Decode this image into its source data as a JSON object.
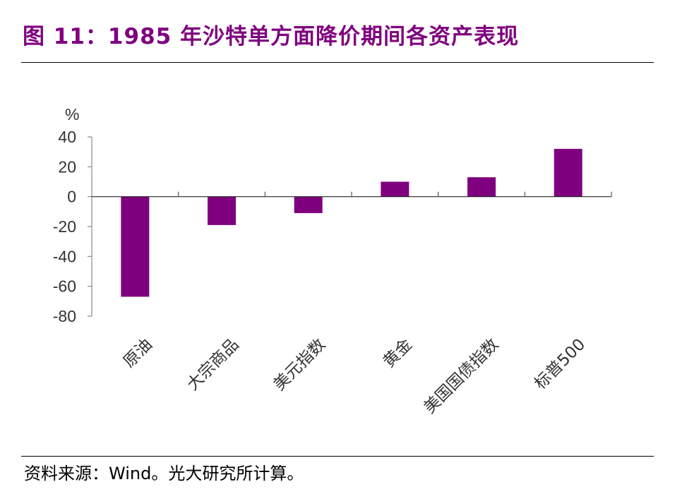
{
  "title": "图 11：1985 年沙特单方面降价期间各资产表现",
  "source": "资料来源：Wind。光大研究所计算。",
  "colors": {
    "bar": "#7f007f",
    "title": "#7f007f"
  },
  "chart_data": {
    "type": "bar",
    "title": "图 11：1985 年沙特单方面降价期间各资产表现",
    "ylabel": "%",
    "xlabel": "",
    "categories": [
      "原油",
      "大宗商品",
      "美元指数",
      "黄金",
      "美国国债指数",
      "标普500"
    ],
    "values": [
      -67,
      -19,
      -11,
      10,
      13,
      32
    ],
    "ylim": [
      -80,
      40
    ],
    "yticks": [
      40,
      20,
      0,
      -20,
      -40,
      -60,
      -80
    ],
    "ytick_labels": [
      "40",
      "20",
      "0",
      "-20",
      "-40",
      "-60",
      "-80"
    ],
    "grid": false,
    "legend": "none"
  }
}
